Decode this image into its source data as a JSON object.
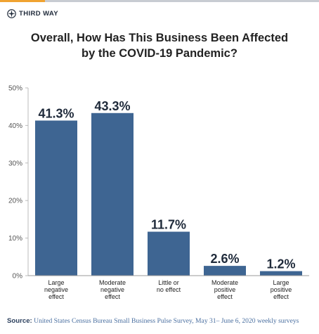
{
  "brand": {
    "name": "THIRD WAY",
    "logo_icon": "compass-star-icon"
  },
  "title_lines": [
    "Overall, How Has This Business Been Affected",
    "by the COVID-19 Pandemic?"
  ],
  "source": {
    "label": "Source:",
    "text": "United States Census Bureau Small Business Pulse Survey, May 31– June 6, 2020 weekly surveys"
  },
  "colors": {
    "bar": "#3e6592",
    "accent": "#f0a331",
    "text": "#222222",
    "grid": "#cccccc"
  },
  "chart_data": {
    "type": "bar",
    "title": "Overall, How Has This Business Been Affected by the COVID-19 Pandemic?",
    "categories": [
      [
        "Large",
        "negative",
        "effect"
      ],
      [
        "Moderate",
        "negative",
        "effect"
      ],
      [
        "Little or",
        "no effect"
      ],
      [
        "Moderate",
        "positive",
        "effect"
      ],
      [
        "Large",
        "positive",
        "effect"
      ]
    ],
    "values": [
      41.3,
      43.3,
      11.7,
      2.6,
      1.2
    ],
    "value_labels": [
      "41.3%",
      "43.3%",
      "11.7%",
      "2.6%",
      "1.2%"
    ],
    "yticks": [
      "0%",
      "10%",
      "20%",
      "30%",
      "40%",
      "50%"
    ],
    "ylim": [
      0,
      50
    ],
    "grid": false,
    "legend": "none"
  }
}
